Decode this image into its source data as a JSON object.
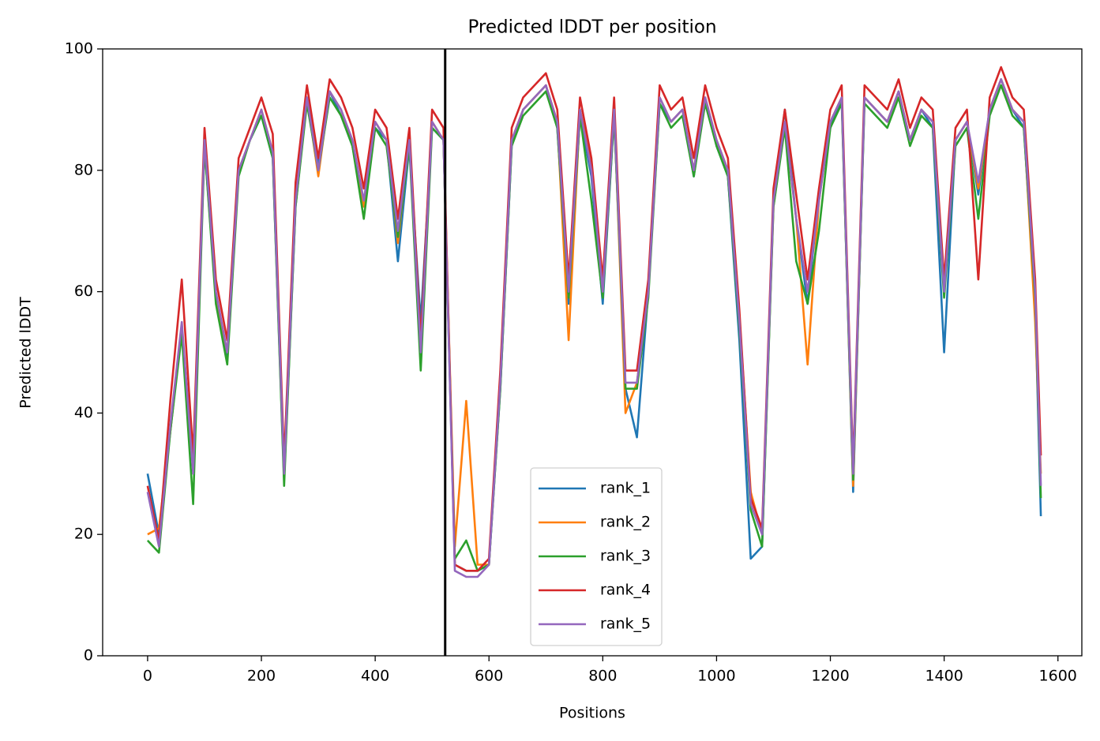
{
  "chart_data": {
    "type": "line",
    "title": "Predicted lDDT per position",
    "x_label": "Positions",
    "y_label": "Predicted lDDT",
    "x": [
      0,
      20,
      40,
      60,
      80,
      100,
      120,
      140,
      160,
      180,
      200,
      220,
      240,
      260,
      280,
      300,
      320,
      340,
      360,
      380,
      400,
      420,
      440,
      460,
      480,
      500,
      520,
      540,
      560,
      580,
      600,
      620,
      640,
      660,
      680,
      700,
      720,
      740,
      760,
      780,
      800,
      820,
      840,
      860,
      880,
      900,
      920,
      940,
      960,
      980,
      1000,
      1020,
      1040,
      1060,
      1080,
      1100,
      1120,
      1140,
      1160,
      1180,
      1200,
      1220,
      1240,
      1260,
      1280,
      1300,
      1320,
      1340,
      1360,
      1380,
      1400,
      1420,
      1440,
      1460,
      1480,
      1500,
      1520,
      1540,
      1560,
      1570
    ],
    "series": [
      {
        "name": "rank_1",
        "color": "#1f77b4",
        "values": [
          30,
          20,
          37,
          54,
          31,
          84,
          59,
          49,
          80,
          85,
          89,
          82,
          29,
          74,
          92,
          81,
          93,
          89,
          84,
          74,
          87,
          85,
          65,
          84,
          55,
          87,
          85,
          15,
          14,
          14,
          15,
          44,
          84,
          90,
          92,
          94,
          87,
          58,
          89,
          79,
          58,
          89,
          44,
          36,
          60,
          91,
          88,
          90,
          79,
          92,
          84,
          79,
          52,
          16,
          18,
          75,
          90,
          72,
          58,
          76,
          87,
          92,
          27,
          92,
          90,
          88,
          93,
          85,
          90,
          87,
          50,
          85,
          88,
          76,
          90,
          95,
          90,
          87,
          58,
          23
        ]
      },
      {
        "name": "rank_2",
        "color": "#ff7f0e",
        "values": [
          20,
          21,
          37,
          54,
          31,
          85,
          59,
          50,
          80,
          85,
          90,
          83,
          31,
          75,
          92,
          79,
          93,
          90,
          84,
          74,
          88,
          85,
          68,
          85,
          51,
          88,
          85,
          18,
          42,
          15,
          15,
          46,
          85,
          90,
          92,
          94,
          88,
          52,
          90,
          81,
          60,
          90,
          40,
          45,
          60,
          92,
          88,
          90,
          80,
          92,
          85,
          80,
          56,
          27,
          20,
          74,
          88,
          72,
          48,
          75,
          88,
          92,
          28,
          92,
          90,
          88,
          93,
          85,
          90,
          88,
          60,
          85,
          88,
          77,
          90,
          95,
          90,
          88,
          55,
          30
        ]
      },
      {
        "name": "rank_3",
        "color": "#2ca02c",
        "values": [
          19,
          17,
          37,
          53,
          25,
          84,
          58,
          48,
          79,
          85,
          89,
          82,
          28,
          74,
          91,
          80,
          92,
          89,
          84,
          72,
          87,
          84,
          69,
          84,
          47,
          87,
          85,
          16,
          19,
          14,
          15,
          44,
          84,
          89,
          91,
          93,
          87,
          59,
          89,
          75,
          59,
          89,
          44,
          44,
          59,
          91,
          87,
          89,
          79,
          91,
          84,
          79,
          54,
          24,
          18,
          74,
          87,
          65,
          58,
          70,
          87,
          91,
          29,
          91,
          89,
          87,
          92,
          84,
          89,
          87,
          59,
          84,
          87,
          72,
          89,
          94,
          89,
          87,
          59,
          26
        ]
      },
      {
        "name": "rank_4",
        "color": "#d62728",
        "values": [
          28,
          19,
          42,
          62,
          33,
          87,
          62,
          52,
          82,
          87,
          92,
          86,
          32,
          78,
          94,
          82,
          95,
          92,
          87,
          77,
          90,
          87,
          72,
          87,
          52,
          90,
          87,
          15,
          14,
          14,
          16,
          47,
          87,
          92,
          94,
          96,
          90,
          62,
          92,
          82,
          62,
          92,
          47,
          47,
          62,
          94,
          90,
          92,
          82,
          94,
          87,
          82,
          57,
          26,
          21,
          77,
          90,
          76,
          62,
          77,
          90,
          94,
          31,
          94,
          92,
          90,
          95,
          87,
          92,
          90,
          62,
          87,
          90,
          62,
          92,
          97,
          92,
          90,
          62,
          33
        ]
      },
      {
        "name": "rank_5",
        "color": "#9467bd",
        "values": [
          27,
          18,
          38,
          55,
          30,
          85,
          60,
          50,
          80,
          85,
          90,
          83,
          30,
          75,
          92,
          80,
          93,
          90,
          85,
          75,
          88,
          85,
          70,
          85,
          50,
          88,
          85,
          14,
          13,
          13,
          15,
          45,
          85,
          90,
          92,
          94,
          88,
          60,
          90,
          80,
          60,
          90,
          45,
          45,
          60,
          92,
          88,
          90,
          80,
          92,
          85,
          80,
          55,
          25,
          20,
          75,
          88,
          72,
          60,
          75,
          88,
          92,
          30,
          92,
          90,
          88,
          93,
          85,
          90,
          88,
          60,
          85,
          88,
          78,
          90,
          95,
          90,
          88,
          60,
          28
        ]
      }
    ],
    "vline": 523,
    "xlim": [
      -79,
      1642
    ],
    "xticks": [
      0,
      200,
      400,
      600,
      800,
      1000,
      1200,
      1400,
      1600
    ],
    "ylim": [
      0,
      100
    ],
    "yticks": [
      0,
      20,
      40,
      60,
      80,
      100
    ],
    "grid": false,
    "legend": "lower center"
  }
}
